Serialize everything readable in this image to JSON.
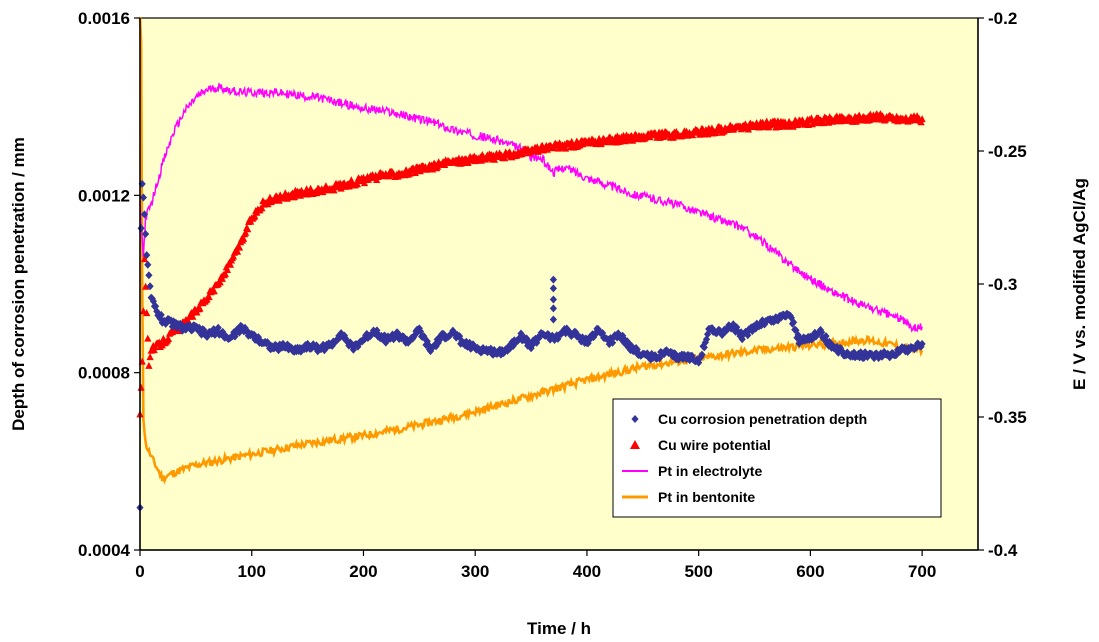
{
  "chart_data": {
    "type": "scatter",
    "xlabel": "Time / h",
    "ylabel_left": "Depth of corrosion penetration / mm",
    "ylabel_right": "E / V vs. modified AgCl/Ag",
    "xlim": [
      0,
      750
    ],
    "ylim_left": [
      0.0004,
      0.0016
    ],
    "ylim_right": [
      -0.4,
      -0.2
    ],
    "x_ticks": [
      "0",
      "100",
      "200",
      "300",
      "400",
      "500",
      "600",
      "700"
    ],
    "y_left_ticks": [
      "0.0004",
      "0.0008",
      "0.0012",
      "0.0016"
    ],
    "y_right_ticks": [
      "-0.4",
      "-0.35",
      "-0.3",
      "-0.25",
      "-0.2"
    ],
    "plot_background": "#ffffcc",
    "grid": false,
    "legend_position": "bottom-right inside",
    "series": [
      {
        "name": "Cu corrosion penetration depth",
        "axis": "left",
        "marker": "diamond",
        "color": "#33339a",
        "points": [
          [
            0,
            0.0005
          ],
          [
            1,
            0.00113
          ],
          [
            2,
            0.00122
          ],
          [
            4,
            0.00116
          ],
          [
            6,
            0.00106
          ],
          [
            10,
            0.00097
          ],
          [
            15,
            0.00094
          ],
          [
            20,
            0.00092
          ],
          [
            30,
            0.00091
          ],
          [
            40,
            0.0009
          ],
          [
            50,
            0.0009
          ],
          [
            60,
            0.000885
          ],
          [
            70,
            0.000895
          ],
          [
            80,
            0.000875
          ],
          [
            90,
            0.0009
          ],
          [
            100,
            0.000885
          ],
          [
            110,
            0.00087
          ],
          [
            120,
            0.000855
          ],
          [
            130,
            0.00086
          ],
          [
            140,
            0.00085
          ],
          [
            150,
            0.00086
          ],
          [
            160,
            0.000855
          ],
          [
            170,
            0.00086
          ],
          [
            180,
            0.00089
          ],
          [
            190,
            0.000855
          ],
          [
            200,
            0.000875
          ],
          [
            210,
            0.000895
          ],
          [
            220,
            0.000875
          ],
          [
            230,
            0.000885
          ],
          [
            240,
            0.00087
          ],
          [
            250,
            0.000895
          ],
          [
            260,
            0.00085
          ],
          [
            270,
            0.00088
          ],
          [
            280,
            0.00089
          ],
          [
            290,
            0.000865
          ],
          [
            300,
            0.000855
          ],
          [
            310,
            0.00085
          ],
          [
            320,
            0.000845
          ],
          [
            330,
            0.000855
          ],
          [
            340,
            0.000885
          ],
          [
            350,
            0.00086
          ],
          [
            360,
            0.00089
          ],
          [
            370,
            0.000875
          ],
          [
            380,
            0.000895
          ],
          [
            390,
            0.000885
          ],
          [
            400,
            0.00087
          ],
          [
            410,
            0.000895
          ],
          [
            420,
            0.00087
          ],
          [
            430,
            0.000885
          ],
          [
            440,
            0.000855
          ],
          [
            450,
            0.00084
          ],
          [
            460,
            0.000835
          ],
          [
            470,
            0.000845
          ],
          [
            480,
            0.000835
          ],
          [
            490,
            0.000835
          ],
          [
            500,
            0.00083
          ],
          [
            505,
            0.00086
          ],
          [
            510,
            0.0009
          ],
          [
            520,
            0.00089
          ],
          [
            530,
            0.000905
          ],
          [
            540,
            0.00088
          ],
          [
            550,
            0.000905
          ],
          [
            560,
            0.000915
          ],
          [
            570,
            0.00092
          ],
          [
            580,
            0.000935
          ],
          [
            585,
            0.00091
          ],
          [
            590,
            0.00087
          ],
          [
            600,
            0.00088
          ],
          [
            610,
            0.00089
          ],
          [
            620,
            0.000855
          ],
          [
            630,
            0.000845
          ],
          [
            640,
            0.00084
          ],
          [
            650,
            0.00084
          ],
          [
            660,
            0.00084
          ],
          [
            670,
            0.00084
          ],
          [
            680,
            0.00085
          ],
          [
            690,
            0.000855
          ],
          [
            700,
            0.000865
          ]
        ],
        "outliers": [
          [
            370,
            0.00101
          ],
          [
            370,
            0.00099
          ],
          [
            370,
            0.000965
          ],
          [
            370,
            0.000945
          ],
          [
            370,
            0.00092
          ]
        ]
      },
      {
        "name": "Cu wire potential",
        "axis": "right",
        "marker": "triangle",
        "color": "#ff0000",
        "points": [
          [
            0,
            -0.35
          ],
          [
            1,
            -0.34
          ],
          [
            2,
            -0.33
          ],
          [
            3,
            -0.31
          ],
          [
            4,
            -0.29
          ],
          [
            5,
            -0.3
          ],
          [
            8,
            -0.33
          ],
          [
            10,
            -0.325
          ],
          [
            20,
            -0.322
          ],
          [
            30,
            -0.318
          ],
          [
            40,
            -0.315
          ],
          [
            50,
            -0.31
          ],
          [
            60,
            -0.305
          ],
          [
            70,
            -0.3
          ],
          [
            80,
            -0.293
          ],
          [
            90,
            -0.285
          ],
          [
            100,
            -0.275
          ],
          [
            110,
            -0.27
          ],
          [
            120,
            -0.268
          ],
          [
            140,
            -0.266
          ],
          [
            160,
            -0.265
          ],
          [
            180,
            -0.263
          ],
          [
            200,
            -0.261
          ],
          [
            220,
            -0.259
          ],
          [
            240,
            -0.258
          ],
          [
            260,
            -0.256
          ],
          [
            280,
            -0.254
          ],
          [
            300,
            -0.253
          ],
          [
            320,
            -0.252
          ],
          [
            340,
            -0.251
          ],
          [
            360,
            -0.249
          ],
          [
            380,
            -0.248
          ],
          [
            400,
            -0.247
          ],
          [
            420,
            -0.246
          ],
          [
            440,
            -0.245
          ],
          [
            460,
            -0.244
          ],
          [
            480,
            -0.244
          ],
          [
            500,
            -0.243
          ],
          [
            520,
            -0.242
          ],
          [
            540,
            -0.241
          ],
          [
            560,
            -0.24
          ],
          [
            580,
            -0.24
          ],
          [
            600,
            -0.239
          ],
          [
            620,
            -0.238
          ],
          [
            640,
            -0.238
          ],
          [
            660,
            -0.237
          ],
          [
            680,
            -0.238
          ],
          [
            700,
            -0.238
          ]
        ]
      },
      {
        "name": "Pt in electrolyte",
        "axis": "right",
        "marker": "line",
        "color": "#ff00ff",
        "points": [
          [
            0,
            -0.27
          ],
          [
            3,
            -0.29
          ],
          [
            5,
            -0.275
          ],
          [
            10,
            -0.27
          ],
          [
            20,
            -0.255
          ],
          [
            30,
            -0.243
          ],
          [
            40,
            -0.235
          ],
          [
            50,
            -0.23
          ],
          [
            60,
            -0.227
          ],
          [
            70,
            -0.226
          ],
          [
            80,
            -0.227
          ],
          [
            90,
            -0.228
          ],
          [
            100,
            -0.228
          ],
          [
            120,
            -0.228
          ],
          [
            140,
            -0.229
          ],
          [
            160,
            -0.23
          ],
          [
            180,
            -0.232
          ],
          [
            200,
            -0.234
          ],
          [
            220,
            -0.235
          ],
          [
            240,
            -0.237
          ],
          [
            260,
            -0.239
          ],
          [
            280,
            -0.242
          ],
          [
            300,
            -0.244
          ],
          [
            320,
            -0.246
          ],
          [
            340,
            -0.249
          ],
          [
            350,
            -0.252
          ],
          [
            360,
            -0.253
          ],
          [
            370,
            -0.258
          ],
          [
            380,
            -0.256
          ],
          [
            390,
            -0.258
          ],
          [
            400,
            -0.26
          ],
          [
            420,
            -0.263
          ],
          [
            440,
            -0.266
          ],
          [
            460,
            -0.268
          ],
          [
            480,
            -0.27
          ],
          [
            500,
            -0.273
          ],
          [
            520,
            -0.276
          ],
          [
            540,
            -0.279
          ],
          [
            560,
            -0.285
          ],
          [
            580,
            -0.292
          ],
          [
            600,
            -0.298
          ],
          [
            620,
            -0.303
          ],
          [
            640,
            -0.307
          ],
          [
            660,
            -0.31
          ],
          [
            680,
            -0.313
          ],
          [
            690,
            -0.316
          ],
          [
            700,
            -0.316
          ]
        ]
      },
      {
        "name": "Pt in bentonite",
        "axis": "right",
        "marker": "line",
        "color": "#ff9900",
        "points": [
          [
            0,
            -0.2
          ],
          [
            1,
            -0.21
          ],
          [
            2,
            -0.3
          ],
          [
            3,
            -0.35
          ],
          [
            5,
            -0.36
          ],
          [
            10,
            -0.365
          ],
          [
            20,
            -0.373
          ],
          [
            30,
            -0.371
          ],
          [
            50,
            -0.368
          ],
          [
            100,
            -0.364
          ],
          [
            150,
            -0.36
          ],
          [
            200,
            -0.357
          ],
          [
            250,
            -0.353
          ],
          [
            300,
            -0.348
          ],
          [
            350,
            -0.342
          ],
          [
            400,
            -0.336
          ],
          [
            450,
            -0.331
          ],
          [
            500,
            -0.328
          ],
          [
            550,
            -0.325
          ],
          [
            600,
            -0.323
          ],
          [
            650,
            -0.321
          ],
          [
            700,
            -0.325
          ]
        ]
      }
    ]
  }
}
